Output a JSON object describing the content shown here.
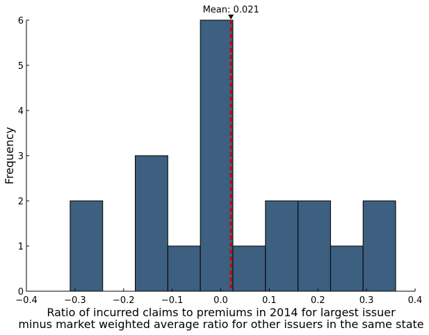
{
  "chart_data": {
    "type": "bar",
    "subtype": "histogram",
    "xlabel_line1": "Ratio of incurred claims to premiums in 2014 for largest issuer",
    "xlabel_line2": "minus market weighted average ratio for other issuers in the same state",
    "ylabel": "Frequency",
    "xlim": [
      -0.4,
      0.4
    ],
    "ylim": [
      0,
      6
    ],
    "xticks": [
      -0.4,
      -0.3,
      -0.2,
      -0.1,
      0.0,
      0.1,
      0.2,
      0.3,
      0.4
    ],
    "xtick_labels": [
      "−0.4",
      "−0.3",
      "−0.2",
      "−0.1",
      "0.0",
      "0.1",
      "0.2",
      "0.3",
      "0.4"
    ],
    "yticks": [
      0,
      1,
      2,
      3,
      4,
      5,
      6
    ],
    "ytick_labels": [
      "0",
      "1",
      "2",
      "3",
      "4",
      "5",
      "6"
    ],
    "bin_edges": [
      -0.31,
      -0.243,
      -0.176,
      -0.109,
      -0.042,
      0.025,
      0.092,
      0.159,
      0.226,
      0.293,
      0.36
    ],
    "counts": [
      2,
      0,
      3,
      1,
      6,
      1,
      2,
      2,
      1,
      2
    ],
    "bar_color": "#3d5f80",
    "mean_value": 0.021,
    "mean_line_color": "#cc0000",
    "mean_label": "Mean: 0.021",
    "grid": false
  }
}
